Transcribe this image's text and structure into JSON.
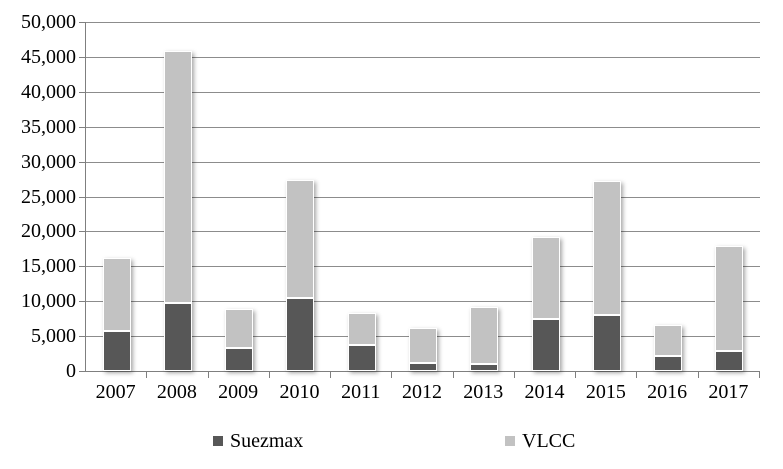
{
  "chart_data": {
    "type": "bar",
    "stacked": true,
    "title": "",
    "xlabel": "",
    "ylabel": "",
    "categories": [
      "2007",
      "2008",
      "2009",
      "2010",
      "2011",
      "2012",
      "2013",
      "2014",
      "2015",
      "2016",
      "2017"
    ],
    "series": [
      {
        "name": "Suezmax",
        "color": "#575757",
        "values": [
          5800,
          9700,
          3300,
          10400,
          3700,
          1100,
          1000,
          7500,
          8000,
          2200,
          2800
        ]
      },
      {
        "name": "VLCC",
        "color": "#c2c2c2",
        "values": [
          10400,
          36100,
          5600,
          16900,
          4600,
          5000,
          8100,
          11800,
          19200,
          4400,
          15100
        ]
      }
    ],
    "totals": [
      16200,
      45800,
      8900,
      27300,
      8300,
      6100,
      9100,
      19300,
      27200,
      6600,
      17900
    ],
    "ylim": [
      0,
      50000
    ],
    "ytick_step": 5000,
    "ytick_labels": [
      "0",
      "5,000",
      "10,000",
      "15,000",
      "20,000",
      "25,000",
      "30,000",
      "35,000",
      "40,000",
      "45,000",
      "50,000"
    ],
    "grid": true,
    "legend_position": "bottom",
    "axis_color": "#7f7f7f",
    "gridline_color": "#8c8c8c"
  }
}
